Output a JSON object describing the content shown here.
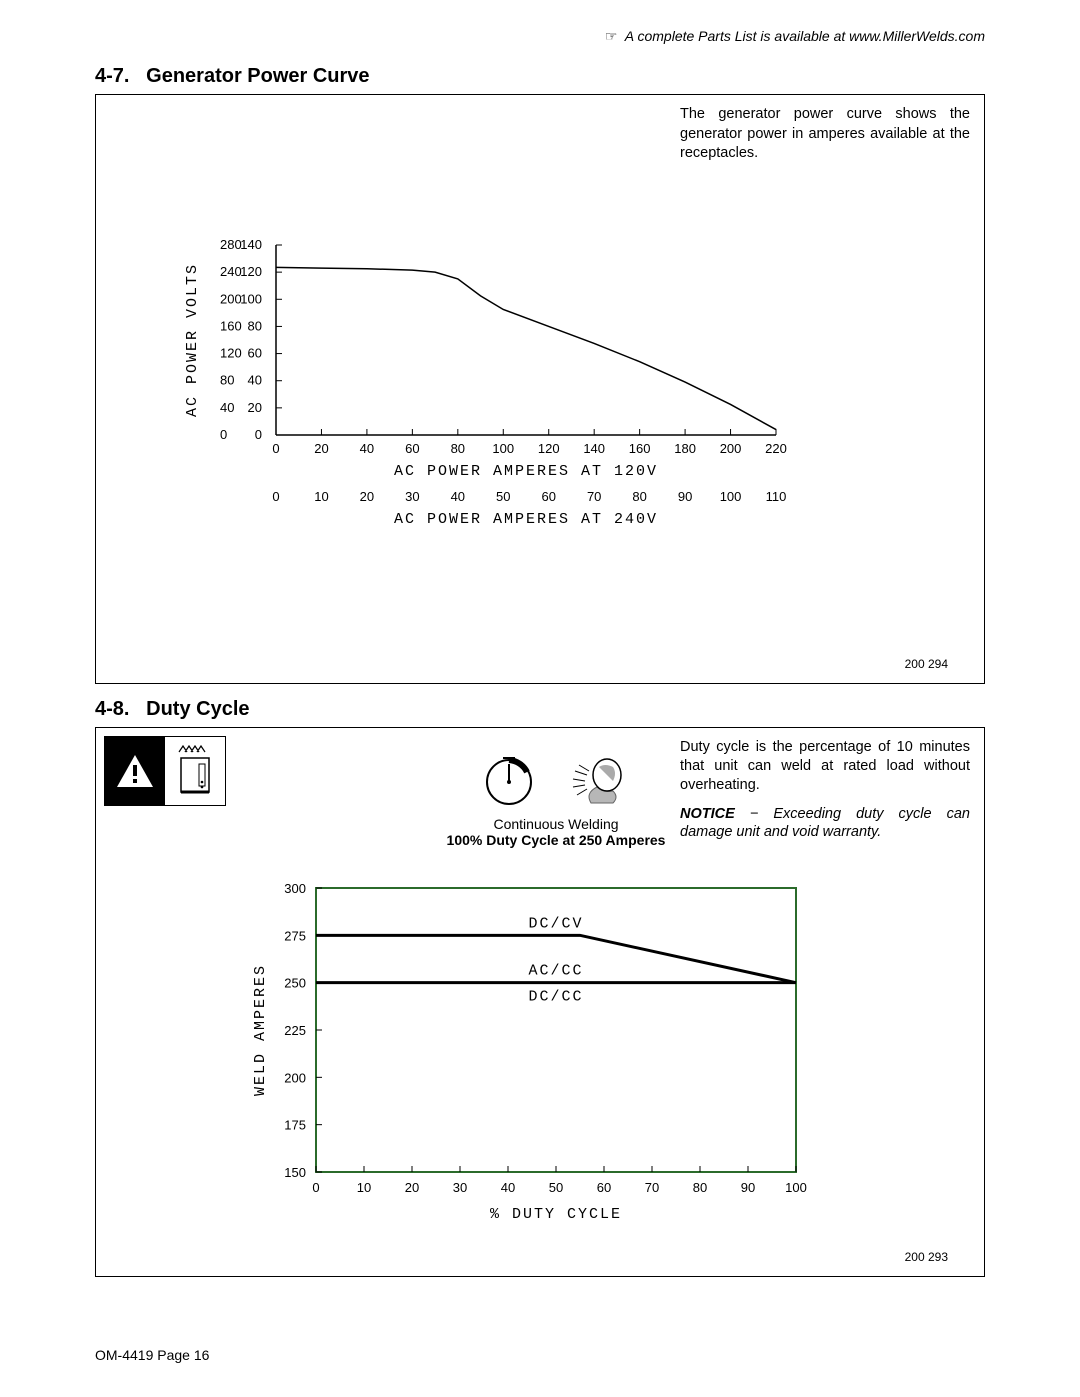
{
  "header_note": "A complete Parts List is available at www.MillerWelds.com",
  "header_note_glyph": "☞",
  "section1": {
    "number": "4-7.",
    "title": "Generator Power Curve",
    "desc": "The generator power curve shows the generator power in amperes available at the receptacles.",
    "figref": "200 294",
    "chart": {
      "type": "line",
      "y1_ticks": [
        0,
        40,
        80,
        120,
        160,
        200,
        240,
        280
      ],
      "y2_ticks": [
        0,
        20,
        40,
        60,
        80,
        100,
        120,
        140
      ],
      "y_label": "AC POWER VOLTS",
      "y_min": 0,
      "y_max": 280,
      "x1_ticks": [
        0,
        20,
        40,
        60,
        80,
        100,
        120,
        140,
        160,
        180,
        200,
        220
      ],
      "x1_label": "AC POWER AMPERES AT 120V",
      "x2_ticks": [
        0,
        10,
        20,
        30,
        40,
        50,
        60,
        70,
        80,
        90,
        100,
        110
      ],
      "x2_label": "AC POWER AMPERES AT 240V",
      "x_min": 0,
      "x_max": 220,
      "points": [
        {
          "x": 0,
          "y": 247
        },
        {
          "x": 20,
          "y": 246
        },
        {
          "x": 40,
          "y": 245
        },
        {
          "x": 60,
          "y": 243
        },
        {
          "x": 70,
          "y": 240
        },
        {
          "x": 80,
          "y": 230
        },
        {
          "x": 90,
          "y": 205
        },
        {
          "x": 100,
          "y": 185
        },
        {
          "x": 120,
          "y": 160
        },
        {
          "x": 140,
          "y": 135
        },
        {
          "x": 160,
          "y": 108
        },
        {
          "x": 180,
          "y": 78
        },
        {
          "x": 200,
          "y": 45
        },
        {
          "x": 220,
          "y": 8
        }
      ],
      "line_color": "#000000",
      "plot_background": "#ffffff"
    }
  },
  "section2": {
    "number": "4-8.",
    "title": "Duty Cycle",
    "desc": "Duty cycle is the percentage of 10 minutes that unit can weld at rated load without overheating.",
    "notice_label": "NOTICE",
    "notice_text": " − Exceeding duty cycle can damage unit and void warranty.",
    "figref": "200 293",
    "caption_small": "Continuous Welding",
    "caption_bold": "100% Duty Cycle at 250 Amperes",
    "chart": {
      "type": "line",
      "x_ticks": [
        0,
        10,
        20,
        30,
        40,
        50,
        60,
        70,
        80,
        90,
        100
      ],
      "x_label": "% DUTY CYCLE",
      "x_min": 0,
      "x_max": 100,
      "y_ticks": [
        150,
        175,
        200,
        225,
        250,
        275,
        300
      ],
      "y_label": "WELD AMPERES",
      "y_min": 150,
      "y_max": 300,
      "series": [
        {
          "label": "DC/CV",
          "label_x": 50,
          "points": [
            {
              "x": 0,
              "y": 275
            },
            {
              "x": 55,
              "y": 275
            },
            {
              "x": 100,
              "y": 250
            }
          ]
        },
        {
          "label1": "AC/CC",
          "label2": "DC/CC",
          "label_x": 50,
          "points": [
            {
              "x": 0,
              "y": 250
            },
            {
              "x": 100,
              "y": 250
            }
          ]
        }
      ],
      "line_color": "#000000",
      "line_width": 3,
      "border_color": "#2b6b2b",
      "plot_background": "#ffffff"
    }
  },
  "footer": "OM-4419 Page 16"
}
